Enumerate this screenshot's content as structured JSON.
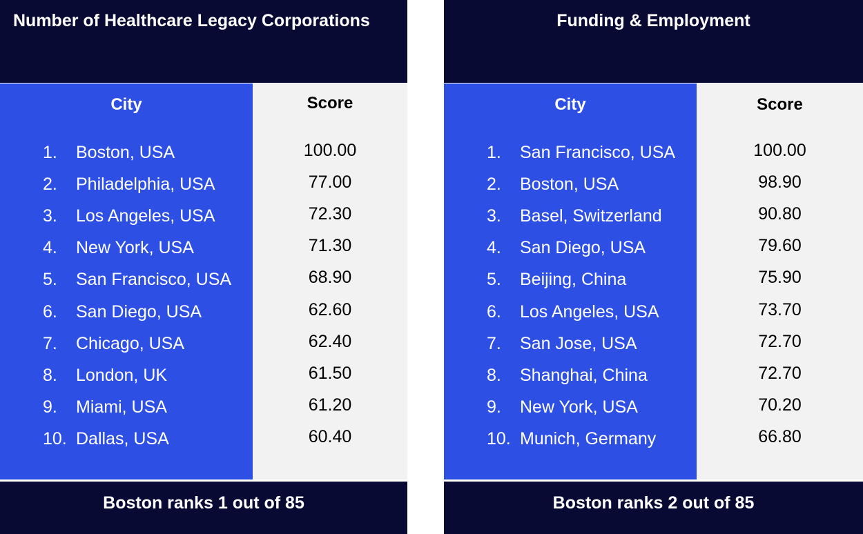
{
  "panels": [
    {
      "title": "Number of Healthcare Legacy Corporations",
      "city_header": "City",
      "score_header": "Score",
      "rows": [
        {
          "rank": "1.",
          "city": "Boston, USA",
          "score": "100.00"
        },
        {
          "rank": "2.",
          "city": "Philadelphia, USA",
          "score": "77.00"
        },
        {
          "rank": "3.",
          "city": "Los Angeles, USA",
          "score": "72.30"
        },
        {
          "rank": "4.",
          "city": "New York, USA",
          "score": "71.30"
        },
        {
          "rank": "5.",
          "city": "San Francisco, USA",
          "score": "68.90"
        },
        {
          "rank": "6.",
          "city": "San Diego, USA",
          "score": "62.60"
        },
        {
          "rank": "7.",
          "city": "Chicago, USA",
          "score": "62.40"
        },
        {
          "rank": "8.",
          "city": "London, UK",
          "score": "61.50"
        },
        {
          "rank": "9.",
          "city": "Miami, USA",
          "score": "61.20"
        },
        {
          "rank": "10.",
          "city": "Dallas, USA",
          "score": "60.40"
        }
      ],
      "footer": "Boston ranks 1 out of 85"
    },
    {
      "title": "Funding & Employment",
      "city_header": "City",
      "score_header": "Score",
      "rows": [
        {
          "rank": "1.",
          "city": "San Francisco, USA",
          "score": "100.00"
        },
        {
          "rank": "2.",
          "city": "Boston, USA",
          "score": "98.90"
        },
        {
          "rank": "3.",
          "city": "Basel, Switzerland",
          "score": "90.80"
        },
        {
          "rank": "4.",
          "city": "San Diego, USA",
          "score": "79.60"
        },
        {
          "rank": "5.",
          "city": "Beijing, China",
          "score": "75.90"
        },
        {
          "rank": "6.",
          "city": "Los Angeles, USA",
          "score": "73.70"
        },
        {
          "rank": "7.",
          "city": "San Jose, USA",
          "score": "72.70"
        },
        {
          "rank": "8.",
          "city": "Shanghai, China",
          "score": "72.70"
        },
        {
          "rank": "9.",
          "city": "New York, USA",
          "score": "70.20"
        },
        {
          "rank": "10.",
          "city": "Munich, Germany",
          "score": "66.80"
        }
      ],
      "footer": "Boston ranks 2 out of 85"
    }
  ],
  "colors": {
    "header_bg": "#080a33",
    "city_col_bg": "#2e4fe4",
    "score_col_bg": "#f2f2f2",
    "text_light": "#ffffff",
    "text_dark": "#000000"
  }
}
